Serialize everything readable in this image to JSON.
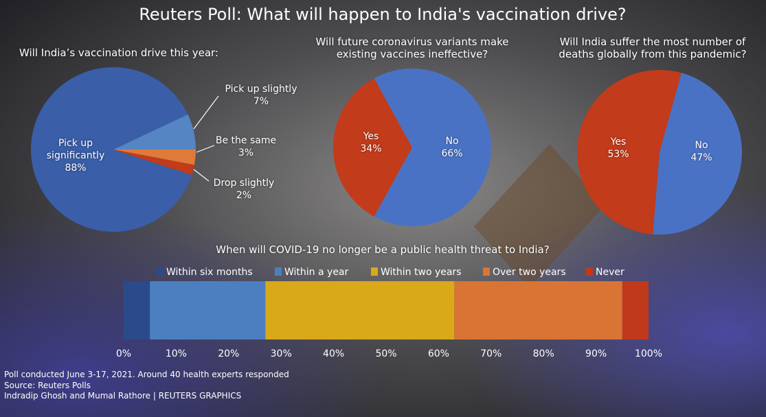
{
  "title": "Reuters Poll: What will happen to India's vaccination drive?",
  "chart_data": [
    {
      "type": "pie",
      "title": "Will India’s vaccination drive this year:",
      "categories": [
        "Pick up significantly",
        "Pick up slightly",
        "Be the same",
        "Drop slightly"
      ],
      "values": [
        88,
        7,
        3,
        2
      ],
      "value_labels": [
        "88%",
        "7%",
        "3%",
        "2%"
      ],
      "colors": [
        "#3a5ea8",
        "#5585c2",
        "#e07a3a",
        "#c23b1a"
      ]
    },
    {
      "type": "pie",
      "title": "Will future coronavirus variants make existing vaccines ineffective?",
      "categories": [
        "Yes",
        "No"
      ],
      "values": [
        34,
        66
      ],
      "value_labels": [
        "34%",
        "66%"
      ],
      "colors": [
        "#c23b1a",
        "#4a72c4"
      ]
    },
    {
      "type": "pie",
      "title": "Will India suffer the most number of deaths globally from this pandemic?",
      "categories": [
        "Yes",
        "No"
      ],
      "values": [
        53,
        47
      ],
      "value_labels": [
        "53%",
        "47%"
      ],
      "colors": [
        "#c23b1a",
        "#4a72c4"
      ]
    },
    {
      "type": "bar",
      "orientation": "horizontal",
      "stacked": true,
      "title": "When will COVID-19 no longer be a public health threat to India?",
      "series": [
        {
          "name": "Within six months",
          "color": "#2b4a8a",
          "values": [
            5
          ]
        },
        {
          "name": "Within a year",
          "color": "#4c7fc0",
          "values": [
            22
          ]
        },
        {
          "name": "Within two years",
          "color": "#d9a91a",
          "values": [
            36
          ]
        },
        {
          "name": "Over two years",
          "color": "#d97435",
          "values": [
            32
          ]
        },
        {
          "name": "Never",
          "color": "#c0391b",
          "values": [
            5
          ]
        }
      ],
      "xlim": [
        0,
        100
      ],
      "xticks": [
        {
          "value": 0,
          "label": "0%"
        },
        {
          "value": 10,
          "label": "10%"
        },
        {
          "value": 20,
          "label": "20%"
        },
        {
          "value": 30,
          "label": "30%"
        },
        {
          "value": 40,
          "label": "40%"
        },
        {
          "value": 50,
          "label": "50%"
        },
        {
          "value": 60,
          "label": "60%"
        },
        {
          "value": 70,
          "label": "70%"
        },
        {
          "value": 80,
          "label": "80%"
        },
        {
          "value": 90,
          "label": "90%"
        },
        {
          "value": 100,
          "label": "100%"
        }
      ]
    }
  ],
  "notes": [
    "Poll conducted June 3-17, 2021. Around 40 health experts responded",
    "Source: Reuters Polls",
    "Indradip Ghosh and Mumal Rathore | REUTERS GRAPHICS"
  ]
}
